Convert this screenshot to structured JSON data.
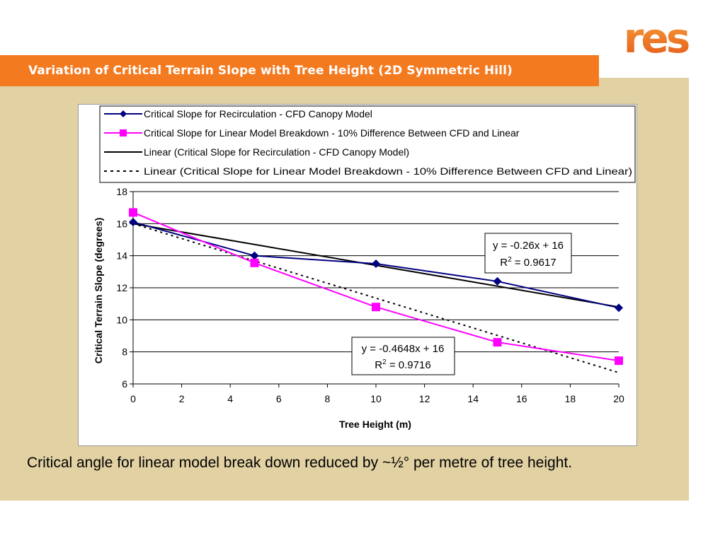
{
  "header": {
    "logo_text": "res",
    "title": "Variation of Critical Terrain Slope with Tree Height (2D Symmetric Hill)"
  },
  "caption": "Critical angle for linear model break down reduced by ~½° per metre of tree height.",
  "colors": {
    "title_bar": "#F47A20",
    "panel": "#E1D1A3",
    "series_cfd": "#000080",
    "series_linear_breakdown": "#FF00FF",
    "trend": "#000000"
  },
  "chart_data": {
    "type": "line",
    "title": "",
    "xlabel": "Tree Height (m)",
    "ylabel": "Critical Terrain Slope (degrees)",
    "xlim": [
      0,
      20
    ],
    "ylim": [
      6,
      18
    ],
    "xticks": [
      0,
      2,
      4,
      6,
      8,
      10,
      12,
      14,
      16,
      18,
      20
    ],
    "yticks": [
      6,
      8,
      10,
      12,
      14,
      16,
      18
    ],
    "grid": "horizontal",
    "legend_position": "top",
    "series": [
      {
        "name": "Critical Slope for Recirculation - CFD Canopy Model",
        "marker": "diamond",
        "x": [
          0,
          5,
          10,
          15,
          20
        ],
        "y": [
          16.1,
          14.0,
          13.5,
          12.4,
          10.75
        ]
      },
      {
        "name": "Critical Slope for Linear Model Breakdown - 10% Difference Between CFD and Linear",
        "marker": "square",
        "x": [
          0,
          5,
          10,
          15,
          20
        ],
        "y": [
          16.7,
          13.55,
          10.8,
          8.6,
          7.45
        ]
      }
    ],
    "trendlines": [
      {
        "name": "Linear (Critical Slope for Recirculation - CFD Canopy Model)",
        "style": "solid",
        "slope": -0.26,
        "intercept": 16,
        "equation": "y = -0.26x + 16",
        "r_squared_label": "R",
        "r_squared_exp": "2",
        "r_squared_value": " = 0.9617"
      },
      {
        "name": "Linear (Critical Slope for Linear Model Breakdown - 10% Difference Between CFD and Linear)",
        "style": "dotted",
        "slope": -0.4648,
        "intercept": 16,
        "equation": "y = -0.4648x + 16",
        "r_squared_label": "R",
        "r_squared_exp": "2",
        "r_squared_value": " = 0.9716"
      }
    ]
  }
}
